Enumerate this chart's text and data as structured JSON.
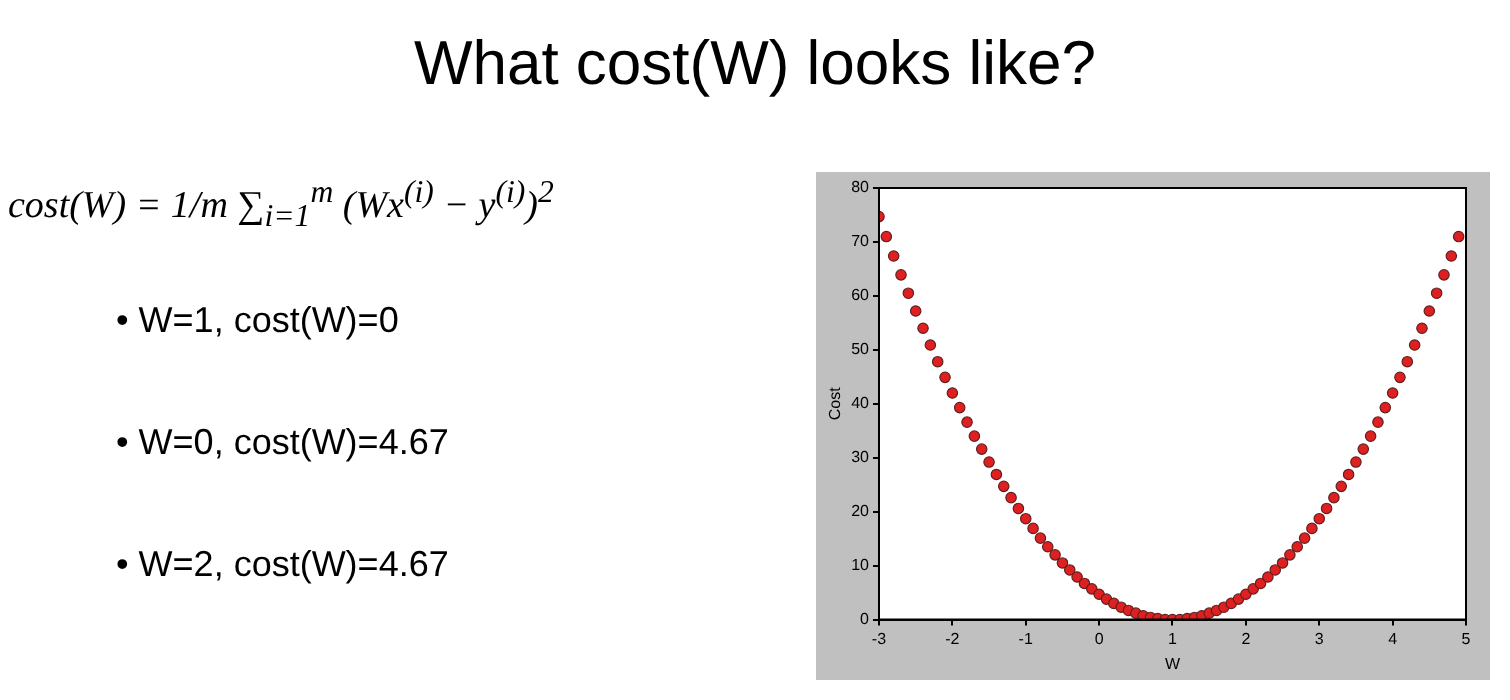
{
  "chart_data": {
    "type": "scatter",
    "title": "What cost(W) looks like?",
    "annotations": [
      "cost(W) = 1/m ∑$_{i=1}$$^{m}$ (Wx$^{(i)}$ − y$^{(i)}$)$^{2}$",
      "• W=1, cost(W)=0",
      "• W=0, cost(W)=4.67",
      "• W=2, cost(W)=4.67"
    ],
    "xlabel": "W",
    "ylabel": "Cost",
    "x": [
      -3,
      -2.9,
      -2.8,
      -2.7,
      -2.6,
      -2.5,
      -2.4,
      -2.3,
      -2.2,
      -2.1,
      -2,
      -1.9,
      -1.8,
      -1.7,
      -1.6,
      -1.5,
      -1.4,
      -1.3,
      -1.2,
      -1.1,
      -1,
      -0.9,
      -0.8,
      -0.7,
      -0.6,
      -0.5,
      -0.4,
      -0.3,
      -0.2,
      -0.1,
      0,
      0.1,
      0.2,
      0.3,
      0.4,
      0.5,
      0.6,
      0.7,
      0.8,
      0.9,
      1,
      1.1,
      1.2,
      1.3,
      1.4,
      1.5,
      1.6,
      1.7,
      1.8,
      1.9,
      2,
      2.1,
      2.2,
      2.3,
      2.4,
      2.5,
      2.6,
      2.7,
      2.8,
      2.9,
      3,
      3.1,
      3.2,
      3.3,
      3.4,
      3.5,
      3.6,
      3.7,
      3.8,
      3.9,
      4,
      4.1,
      4.2,
      4.3,
      4.4,
      4.5,
      4.6,
      4.7,
      4.8,
      4.9
    ],
    "series": [
      {
        "color": "#e02020",
        "values": [
          74.7,
          71.0,
          67.4,
          63.9,
          60.5,
          57.2,
          54.0,
          50.9,
          47.8,
          44.9,
          42.0,
          39.3,
          36.6,
          34.0,
          31.6,
          29.2,
          26.9,
          24.7,
          22.6,
          20.6,
          18.7,
          16.9,
          15.1,
          13.5,
          12.0,
          10.5,
          9.2,
          7.9,
          6.7,
          5.7,
          4.7,
          3.8,
          3.0,
          2.3,
          1.7,
          1.2,
          0.7,
          0.4,
          0.2,
          0.0,
          0,
          0.0,
          0.2,
          0.4,
          0.7,
          1.2,
          1.7,
          2.3,
          3.0,
          3.8,
          4.7,
          5.7,
          6.7,
          7.9,
          9.2,
          10.5,
          12.0,
          13.5,
          15.1,
          16.9,
          18.7,
          20.6,
          22.6,
          24.7,
          26.9,
          29.2,
          31.6,
          34.0,
          36.6,
          39.3,
          42.0,
          44.9,
          47.8,
          50.9,
          54.0,
          57.2,
          60.5,
          63.9,
          67.4,
          71.0
        ]
      }
    ],
    "xlim": [
      -3,
      5
    ],
    "xticks": [
      -3,
      -2,
      -1,
      0,
      1,
      2,
      3,
      4,
      5
    ],
    "ylim": [
      0,
      80
    ],
    "yticks": [
      0,
      10,
      20,
      30,
      40,
      50,
      60,
      70,
      80
    ],
    "grid": false,
    "legend": false,
    "marker": "circle"
  }
}
